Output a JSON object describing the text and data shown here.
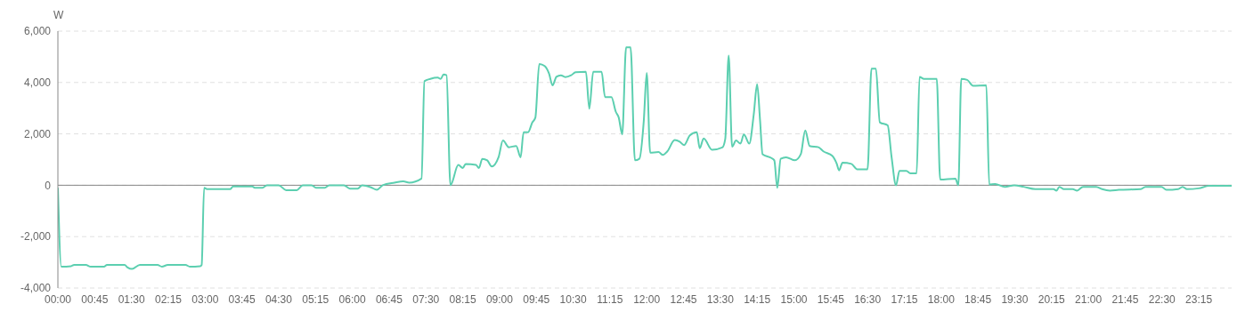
{
  "chart_data": {
    "type": "line",
    "ylabel": "W",
    "x": [
      0,
      0.07,
      0.27,
      0.33,
      0.57,
      0.67,
      0.94,
      1.0,
      1.36,
      1.42,
      1.51,
      1.67,
      2.03,
      2.12,
      2.24,
      2.6,
      2.69,
      2.9,
      2.93,
      2.98,
      3.05,
      3.51,
      3.57,
      3.96,
      4.02,
      4.17,
      4.26,
      4.5,
      4.65,
      4.87,
      4.99,
      5.17,
      5.26,
      5.44,
      5.53,
      5.83,
      5.95,
      6.11,
      6.2,
      6.38,
      6.5,
      6.62,
      6.86,
      7.04,
      7.16,
      7.41,
      7.47,
      7.59,
      7.74,
      7.8,
      7.86,
      7.92,
      8.0,
      8.16,
      8.25,
      8.31,
      8.52,
      8.58,
      8.65,
      8.75,
      8.84,
      8.98,
      9.07,
      9.19,
      9.34,
      9.43,
      9.49,
      9.58,
      9.67,
      9.73,
      9.81,
      9.92,
      10.01,
      10.08,
      10.16,
      10.25,
      10.34,
      10.46,
      10.55,
      10.76,
      10.83,
      10.91,
      11.08,
      11.15,
      11.28,
      11.37,
      11.43,
      11.5,
      11.58,
      11.67,
      11.76,
      11.85,
      11.94,
      12.0,
      12.07,
      12.24,
      12.33,
      12.42,
      12.57,
      12.67,
      12.76,
      12.88,
      13.02,
      13.08,
      13.16,
      13.33,
      13.54,
      13.6,
      13.67,
      13.74,
      13.82,
      13.91,
      13.98,
      14.09,
      14.18,
      14.25,
      14.31,
      14.36,
      14.54,
      14.6,
      14.66,
      14.73,
      14.84,
      15.02,
      15.14,
      15.23,
      15.32,
      15.5,
      15.6,
      15.78,
      15.87,
      15.92,
      15.99,
      16.17,
      16.29,
      16.5,
      16.58,
      16.67,
      16.75,
      16.91,
      16.99,
      17.08,
      17.15,
      17.29,
      17.38,
      17.5,
      17.56,
      17.65,
      17.91,
      17.98,
      18.29,
      18.35,
      18.41,
      18.53,
      18.65,
      18.92,
      18.98,
      19.1,
      19.3,
      19.49,
      19.68,
      19.92,
      20.29,
      20.35,
      20.41,
      20.5,
      20.68,
      20.77,
      20.89,
      21.16,
      21.28,
      21.44,
      21.62,
      22.07,
      22.16,
      22.49,
      22.59,
      22.83,
      22.92,
      23.01,
      23.25,
      23.46,
      23.92
    ],
    "values": [
      -100,
      -3170,
      -3150,
      -3100,
      -3100,
      -3170,
      -3170,
      -3100,
      -3100,
      -3200,
      -3260,
      -3100,
      -3100,
      -3170,
      -3100,
      -3100,
      -3170,
      -3150,
      -3100,
      -100,
      -150,
      -150,
      -50,
      -50,
      -100,
      -100,
      0,
      0,
      -190,
      -190,
      0,
      0,
      -100,
      -100,
      0,
      0,
      -130,
      -130,
      0,
      -80,
      -180,
      0,
      100,
      150,
      100,
      260,
      4050,
      4140,
      4190,
      4140,
      4310,
      4280,
      0,
      790,
      670,
      830,
      790,
      670,
      1030,
      970,
      730,
      1090,
      1740,
      1480,
      1530,
      1090,
      2060,
      2060,
      2450,
      2630,
      4720,
      4640,
      4340,
      3890,
      4220,
      4280,
      4210,
      4280,
      4400,
      4420,
      2980,
      4420,
      4420,
      3430,
      3430,
      2860,
      2630,
      1980,
      5370,
      5370,
      970,
      1030,
      2510,
      4370,
      1270,
      1290,
      1180,
      1320,
      1760,
      1700,
      1560,
      1940,
      2060,
      1440,
      1820,
      1380,
      1470,
      1800,
      5050,
      1500,
      1740,
      1620,
      1980,
      1620,
      2740,
      3930,
      2510,
      1210,
      1060,
      970,
      -100,
      1030,
      1090,
      970,
      1210,
      2130,
      1530,
      1480,
      1320,
      1150,
      850,
      580,
      880,
      830,
      620,
      620,
      4540,
      4540,
      2450,
      2330,
      1090,
      0,
      560,
      560,
      460,
      460,
      4220,
      4140,
      4140,
      225,
      260,
      0,
      4140,
      4100,
      3870,
      3890,
      25,
      50,
      -60,
      0,
      -60,
      -150,
      -150,
      -210,
      -60,
      -150,
      -150,
      -210,
      -60,
      -60,
      -150,
      -210,
      -180,
      -150,
      -60,
      -60,
      -180,
      -150,
      -60,
      -150,
      -120,
      -20,
      -20
    ],
    "color": "#5ccfb0",
    "marker": "none",
    "line_style": "solid",
    "grid": "y",
    "xlim": [
      0,
      23.92
    ],
    "xticks": [
      {
        "value": 0,
        "label": "00:00"
      },
      {
        "value": 0.75,
        "label": "00:45"
      },
      {
        "value": 1.5,
        "label": "01:30"
      },
      {
        "value": 2.25,
        "label": "02:15"
      },
      {
        "value": 3,
        "label": "03:00"
      },
      {
        "value": 3.75,
        "label": "03:45"
      },
      {
        "value": 4.5,
        "label": "04:30"
      },
      {
        "value": 5.25,
        "label": "05:15"
      },
      {
        "value": 6,
        "label": "06:00"
      },
      {
        "value": 6.75,
        "label": "06:45"
      },
      {
        "value": 7.5,
        "label": "07:30"
      },
      {
        "value": 8.25,
        "label": "08:15"
      },
      {
        "value": 9,
        "label": "09:00"
      },
      {
        "value": 9.75,
        "label": "09:45"
      },
      {
        "value": 10.5,
        "label": "10:30"
      },
      {
        "value": 11.25,
        "label": "11:15"
      },
      {
        "value": 12,
        "label": "12:00"
      },
      {
        "value": 12.75,
        "label": "12:45"
      },
      {
        "value": 13.5,
        "label": "13:30"
      },
      {
        "value": 14.25,
        "label": "14:15"
      },
      {
        "value": 15,
        "label": "15:00"
      },
      {
        "value": 15.75,
        "label": "15:45"
      },
      {
        "value": 16.5,
        "label": "16:30"
      },
      {
        "value": 17.25,
        "label": "17:15"
      },
      {
        "value": 18,
        "label": "18:00"
      },
      {
        "value": 18.75,
        "label": "18:45"
      },
      {
        "value": 19.5,
        "label": "19:30"
      },
      {
        "value": 20.25,
        "label": "20:15"
      },
      {
        "value": 21,
        "label": "21:00"
      },
      {
        "value": 21.75,
        "label": "21:45"
      },
      {
        "value": 22.5,
        "label": "22:30"
      },
      {
        "value": 23.25,
        "label": "23:15"
      }
    ],
    "ylim": [
      -4000,
      6000
    ],
    "yticks": [
      {
        "value": -4000,
        "label": "-4,000"
      },
      {
        "value": -2000,
        "label": "-2,000"
      },
      {
        "value": 0,
        "label": "0"
      },
      {
        "value": 2000,
        "label": "2,000"
      },
      {
        "value": 4000,
        "label": "4,000"
      },
      {
        "value": 6000,
        "label": "6,000"
      }
    ]
  }
}
